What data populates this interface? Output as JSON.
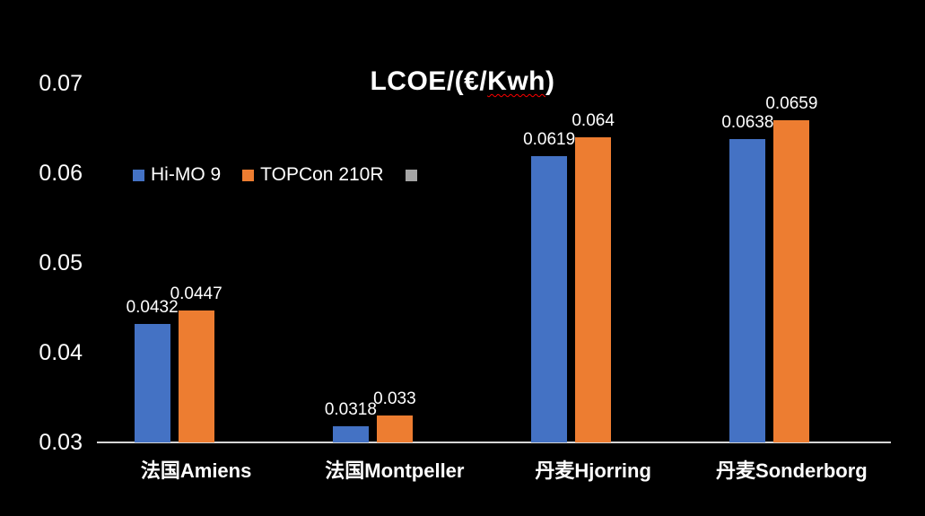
{
  "title": {
    "full": "LCOE/(€/Kwh)",
    "prefix": "LCOE/(€/",
    "misspelled_word": "Kwh",
    "suffix": ")"
  },
  "colors": {
    "background": "#000000",
    "text": "#ffffff",
    "axis_line": "#d6d6d6",
    "spellcheck_underline": "#ff0000",
    "series_blue": "#4472c4",
    "series_orange": "#ed7d31",
    "series_gray": "#a5a5a5"
  },
  "legend": {
    "items": [
      {
        "label": "Hi-MO 9",
        "color": "#4472c4"
      },
      {
        "label": "TOPCon 210R",
        "color": "#ed7d31"
      },
      {
        "label": "",
        "color": "#a5a5a5"
      }
    ]
  },
  "y_axis": {
    "ticks": [
      "0.07",
      "0.06",
      "0.05",
      "0.04",
      "0.03"
    ],
    "min": 0.03,
    "max": 0.07
  },
  "chart_data": {
    "type": "bar",
    "title": "LCOE/(€/Kwh)",
    "categories": [
      "法国Amiens",
      "法国Montpeller",
      "丹麦Hjorring",
      "丹麦Sonderborg"
    ],
    "series": [
      {
        "name": "Hi-MO 9",
        "color": "#4472c4",
        "values": [
          0.0432,
          0.0318,
          0.0619,
          0.0638
        ],
        "labels": [
          "0.0432",
          "0.0318",
          "0.0619",
          "0.0638"
        ]
      },
      {
        "name": "TOPCon 210R",
        "color": "#ed7d31",
        "values": [
          0.0447,
          0.033,
          0.064,
          0.0659
        ],
        "labels": [
          "0.0447",
          "0.033",
          "0.064",
          "0.0659"
        ]
      },
      {
        "name": "",
        "color": "#a5a5a5",
        "values": [
          null,
          null,
          null,
          null
        ],
        "labels": [
          "",
          "",
          "",
          ""
        ]
      }
    ],
    "xlabel": "",
    "ylabel": "",
    "ylim": [
      0.03,
      0.07
    ],
    "y_tick_step": 0.01,
    "grid": false,
    "data_labels": true,
    "legend_position": "upper-left-inside"
  }
}
